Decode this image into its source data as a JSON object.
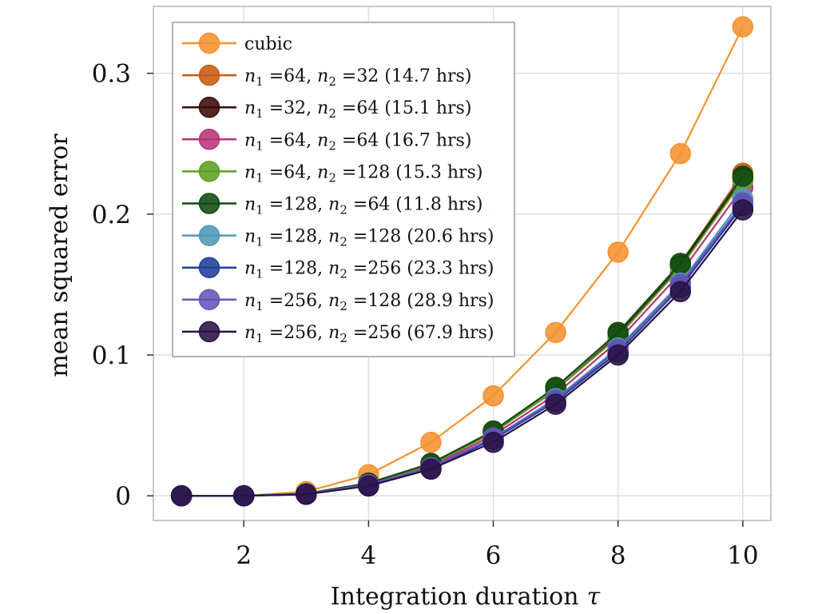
{
  "chart_data": {
    "type": "line",
    "title": "",
    "xlabel": "Integration duration",
    "xlabel_symbol": "τ",
    "ylabel": "mean squared error",
    "xlim": [
      0.55,
      10.45
    ],
    "ylim": [
      -0.0175,
      0.3475
    ],
    "xticks": [
      2,
      4,
      6,
      8,
      10
    ],
    "xtick_labels": [
      "2",
      "4",
      "6",
      "8",
      "10"
    ],
    "yticks": [
      0,
      0.1,
      0.2,
      0.3
    ],
    "ytick_labels": [
      "0",
      "0.1",
      "0.2",
      "0.3"
    ],
    "grid": true,
    "legend_position": "top-left",
    "x": [
      1,
      2,
      3,
      4,
      5,
      6,
      7,
      8,
      9,
      10
    ],
    "series": [
      {
        "label": "cubic",
        "color": "#F5922F",
        "values": [
          0,
          0,
          0.003,
          0.015,
          0.038,
          0.071,
          0.116,
          0.173,
          0.243,
          0.333
        ]
      },
      {
        "n1": "64",
        "n2": "32",
        "hrs": "(14.7 hrs)",
        "color": "#C85A12",
        "values": [
          0,
          0,
          0.0015,
          0.009,
          0.023,
          0.046,
          0.077,
          0.116,
          0.165,
          0.229
        ]
      },
      {
        "n1": "32",
        "n2": "64",
        "hrs": "(15.1 hrs)",
        "color": "#3A0A08",
        "values": [
          0,
          0,
          0.0015,
          0.009,
          0.022,
          0.045,
          0.075,
          0.114,
          0.163,
          0.226
        ]
      },
      {
        "n1": "64",
        "n2": "64",
        "hrs": "(16.7 hrs)",
        "color": "#B8337A",
        "values": [
          0,
          0,
          0.0013,
          0.008,
          0.021,
          0.043,
          0.072,
          0.11,
          0.158,
          0.219
        ]
      },
      {
        "n1": "64",
        "n2": "128",
        "hrs": "(15.3 hrs)",
        "color": "#5E9E22",
        "values": [
          0,
          0,
          0.0014,
          0.009,
          0.022,
          0.045,
          0.075,
          0.113,
          0.162,
          0.224
        ]
      },
      {
        "n1": "128",
        "n2": "64",
        "hrs": "(11.8 hrs)",
        "color": "#0F4A12",
        "values": [
          0,
          0,
          0.0015,
          0.009,
          0.023,
          0.046,
          0.077,
          0.116,
          0.165,
          0.227
        ]
      },
      {
        "n1": "128",
        "n2": "128",
        "hrs": "(20.6 hrs)",
        "color": "#4F98B8",
        "values": [
          0,
          0,
          0.0012,
          0.008,
          0.02,
          0.041,
          0.069,
          0.105,
          0.151,
          0.211
        ]
      },
      {
        "n1": "128",
        "n2": "256",
        "hrs": "(23.3 hrs)",
        "color": "#1F3F98",
        "values": [
          0,
          0,
          0.0011,
          0.007,
          0.019,
          0.04,
          0.067,
          0.102,
          0.148,
          0.206
        ]
      },
      {
        "n1": "256",
        "n2": "128",
        "hrs": "(28.9 hrs)",
        "color": "#6655B8",
        "values": [
          0,
          0,
          0.0012,
          0.008,
          0.02,
          0.041,
          0.068,
          0.104,
          0.15,
          0.208
        ]
      },
      {
        "n1": "256",
        "n2": "256",
        "hrs": "(67.9 hrs)",
        "color": "#2A1245",
        "values": [
          0,
          0,
          0.001,
          0.007,
          0.019,
          0.038,
          0.065,
          0.1,
          0.145,
          0.203
        ]
      }
    ]
  }
}
